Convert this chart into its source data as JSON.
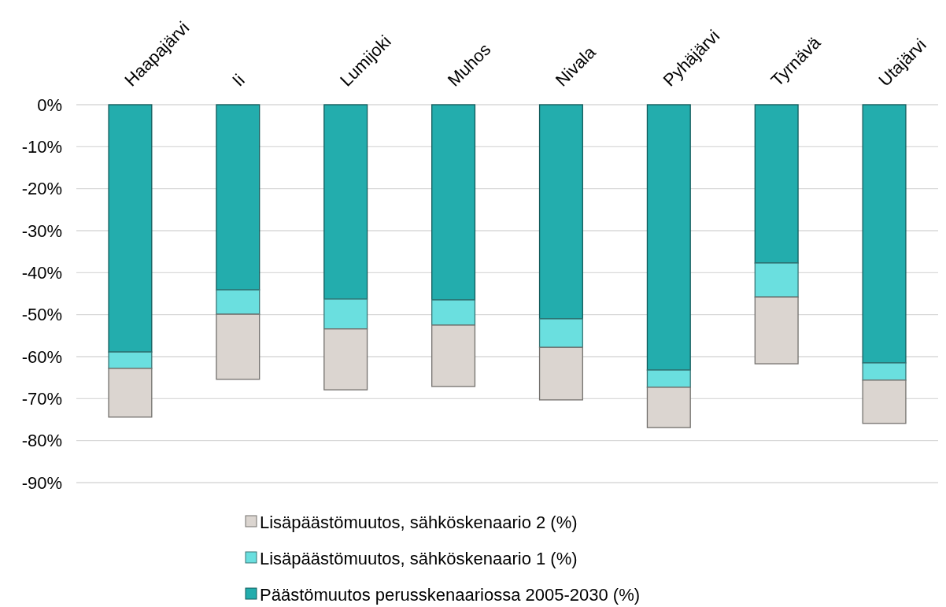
{
  "chart_data": {
    "type": "bar",
    "stacked": true,
    "categories": [
      "Haapajärvi",
      "Ii",
      "Lumijoki",
      "Muhos",
      "Nivala",
      "Pyhäjärvi",
      "Tyrnävä",
      "Utajärvi"
    ],
    "series": [
      {
        "name": "Päästömuutos perusskenaariossa 2005-2030 (%)",
        "color": "#23adad",
        "values": [
          -58.9,
          -44.1,
          -46.3,
          -46.5,
          -51.0,
          -63.2,
          -37.7,
          -61.5
        ]
      },
      {
        "name": "Lisäpäästömuutos, sähköskenaario 1 (%)",
        "color": "#6adfdf",
        "values": [
          -3.9,
          -5.8,
          -7.1,
          -6.0,
          -6.8,
          -4.1,
          -8.1,
          -4.1
        ]
      },
      {
        "name": "Lisäpäästömuutos, sähköskenaario 2 (%)",
        "color": "#dbd5d0",
        "values": [
          -11.6,
          -15.5,
          -14.5,
          -14.6,
          -12.5,
          -9.6,
          -15.9,
          -10.3
        ]
      }
    ],
    "ylim": [
      -90,
      0
    ],
    "yticks": [
      {
        "value": 0,
        "label": "0%"
      },
      {
        "value": -10,
        "label": "-10%"
      },
      {
        "value": -20,
        "label": "-20%"
      },
      {
        "value": -30,
        "label": "-30%"
      },
      {
        "value": -40,
        "label": "-40%"
      },
      {
        "value": -50,
        "label": "-50%"
      },
      {
        "value": -60,
        "label": "-60%"
      },
      {
        "value": -70,
        "label": "-70%"
      },
      {
        "value": -80,
        "label": "-80%"
      },
      {
        "value": -90,
        "label": "-90%"
      }
    ],
    "grid": "y",
    "legend": "bottom"
  }
}
